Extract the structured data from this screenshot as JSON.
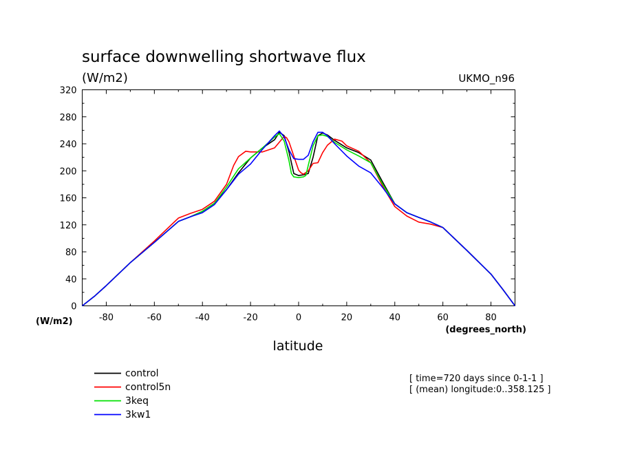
{
  "chart_data": {
    "type": "line",
    "title": "surface downwelling shortwave flux",
    "units_label": "(W/m2)",
    "model_label": "UKMO_n96",
    "y_axis_label": "(W/m2)",
    "x_axis_units": "(degrees_north)",
    "xlabel": "latitude",
    "xlim": [
      -90,
      90
    ],
    "ylim": [
      0,
      320
    ],
    "x_ticks": [
      -80,
      -60,
      -40,
      -20,
      0,
      20,
      40,
      60,
      80
    ],
    "y_ticks": [
      0,
      40,
      80,
      120,
      160,
      200,
      240,
      280,
      320
    ],
    "info_lines": [
      "[ time=720 days since 0-1-1 ]",
      "[ (mean) longitude:0..358.125 ]"
    ],
    "series": [
      {
        "name": "control",
        "color": "#000000",
        "x": [
          -90,
          -85,
          -80,
          -70,
          -60,
          -50,
          -45,
          -40,
          -35,
          -30,
          -25,
          -20,
          -15,
          -10,
          -8,
          -6,
          -4,
          -2,
          0,
          2,
          4,
          6,
          8,
          10,
          12,
          15,
          20,
          25,
          30,
          35,
          40,
          45,
          50,
          55,
          60,
          70,
          80,
          85,
          90
        ],
        "y": [
          0,
          14,
          30,
          64,
          94,
          125,
          132,
          140,
          152,
          172,
          197,
          219,
          234,
          246,
          257,
          252,
          228,
          196,
          193,
          194,
          196,
          220,
          252,
          256,
          253,
          245,
          234,
          227,
          216,
          183,
          151,
          138,
          131,
          124,
          116,
          82,
          47,
          24,
          0
        ]
      },
      {
        "name": "control5n",
        "color": "#ff0000",
        "x": [
          -90,
          -85,
          -80,
          -70,
          -60,
          -50,
          -45,
          -40,
          -35,
          -30,
          -27,
          -25,
          -22,
          -20,
          -15,
          -10,
          -6,
          -5,
          -4,
          -2,
          0,
          1,
          2,
          4,
          6,
          8,
          10,
          12,
          15,
          18,
          20,
          25,
          30,
          35,
          40,
          45,
          50,
          55,
          60,
          70,
          80,
          85,
          90
        ],
        "y": [
          0,
          14,
          30,
          64,
          96,
          130,
          137,
          143,
          155,
          180,
          208,
          221,
          229,
          228,
          228,
          234,
          251,
          249,
          243,
          222,
          201,
          197,
          195,
          200,
          211,
          212,
          227,
          238,
          247,
          244,
          237,
          229,
          212,
          177,
          147,
          133,
          124,
          121,
          116,
          82,
          47,
          24,
          0
        ]
      },
      {
        "name": "3keq",
        "color": "#00e000",
        "x": [
          -90,
          -85,
          -80,
          -70,
          -60,
          -50,
          -45,
          -40,
          -35,
          -30,
          -25,
          -20,
          -15,
          -10,
          -8,
          -6,
          -4,
          -3,
          -2,
          0,
          2,
          3,
          4,
          6,
          8,
          10,
          12,
          15,
          20,
          25,
          30,
          35,
          40,
          45,
          50,
          55,
          60,
          70,
          80,
          85,
          90
        ],
        "y": [
          0,
          14,
          30,
          64,
          94,
          125,
          132,
          140,
          152,
          176,
          203,
          219,
          234,
          250,
          255,
          244,
          215,
          196,
          191,
          190,
          191,
          193,
          208,
          237,
          252,
          253,
          251,
          242,
          231,
          222,
          212,
          180,
          151,
          138,
          131,
          124,
          116,
          82,
          47,
          24,
          0
        ]
      },
      {
        "name": "3kw1",
        "color": "#0000ff",
        "x": [
          -90,
          -85,
          -80,
          -70,
          -60,
          -50,
          -45,
          -40,
          -35,
          -30,
          -25,
          -20,
          -15,
          -10,
          -8,
          -6,
          -4,
          -2,
          0,
          2,
          4,
          6,
          8,
          10,
          12,
          15,
          20,
          25,
          30,
          35,
          40,
          45,
          50,
          55,
          60,
          70,
          80,
          85,
          90
        ],
        "y": [
          0,
          14,
          30,
          64,
          94,
          125,
          132,
          138,
          150,
          172,
          195,
          210,
          232,
          252,
          259,
          250,
          231,
          218,
          217,
          217,
          223,
          243,
          257,
          257,
          252,
          240,
          222,
          207,
          197,
          175,
          151,
          138,
          131,
          124,
          116,
          82,
          47,
          24,
          0
        ]
      }
    ]
  }
}
